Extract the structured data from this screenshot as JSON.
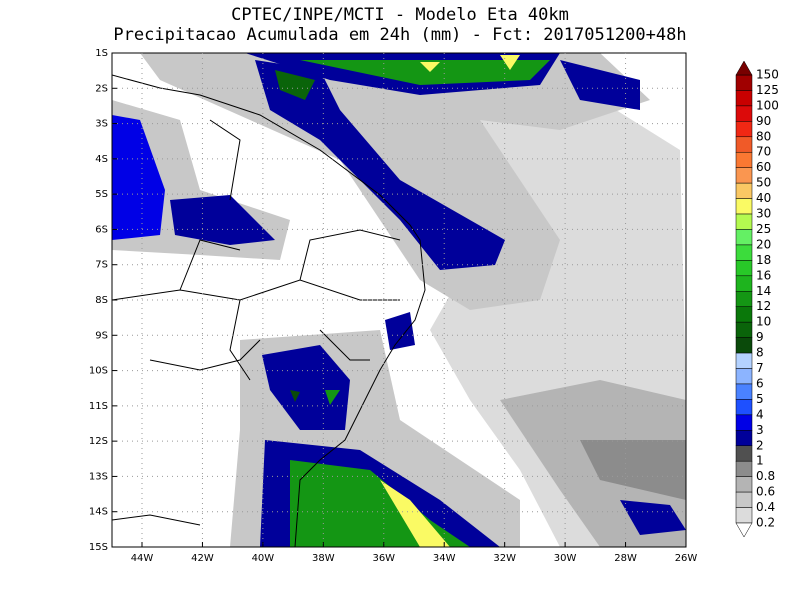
{
  "header": {
    "title_line1": "CPTEC/INPE/MCTI - Modelo Eta 40km",
    "title_line2": "Precipitacao Acumulada em 24h (mm) - Fct: 2017051200+48h"
  },
  "map": {
    "lat_labels": [
      "1S",
      "2S",
      "3S",
      "4S",
      "5S",
      "6S",
      "7S",
      "8S",
      "9S",
      "10S",
      "11S",
      "12S",
      "13S",
      "14S",
      "15S"
    ],
    "lon_labels": [
      "44W",
      "42W",
      "40W",
      "38W",
      "36W",
      "34W",
      "32W",
      "30W",
      "28W",
      "26W"
    ]
  },
  "colorbar": {
    "labels": [
      "150",
      "125",
      "100",
      "90",
      "80",
      "70",
      "60",
      "50",
      "40",
      "30",
      "25",
      "20",
      "18",
      "16",
      "14",
      "12",
      "10",
      "9",
      "8",
      "7",
      "6",
      "5",
      "4",
      "3",
      "2",
      "1",
      "0.8",
      "0.6",
      "0.4",
      "0.2"
    ],
    "colors": [
      "#a00000",
      "#c80000",
      "#dc0a0a",
      "#f02814",
      "#f05a28",
      "#fa7832",
      "#fa9650",
      "#fac864",
      "#fafa64",
      "#b4fa50",
      "#64f064",
      "#3cdc3c",
      "#28c828",
      "#1eb41e",
      "#149614",
      "#0a780a",
      "#0a640a",
      "#0a4a0a",
      "#b4d2ff",
      "#8cb4ff",
      "#4a82ff",
      "#1e50ff",
      "#0000e6",
      "#00009a",
      "#505050",
      "#8c8c8c",
      "#b4b4b4",
      "#c8c8c8",
      "#dcdcdc"
    ],
    "top_color": "#780000",
    "bottom_color": "#ffffff"
  }
}
